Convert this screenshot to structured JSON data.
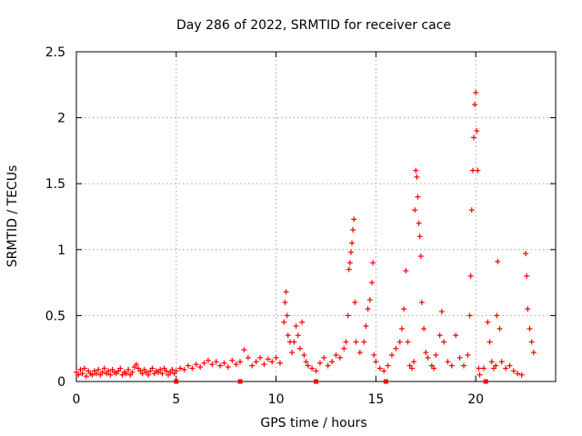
{
  "chart_data": {
    "type": "scatter",
    "title": "Day 286 of 2022, SRMTID for receiver cace",
    "xlabel": "GPS time / hours",
    "ylabel": "SRMTID / TECUs",
    "xlim": [
      0,
      24
    ],
    "ylim": [
      0,
      2.5
    ],
    "x_ticks": [
      0,
      5,
      10,
      15,
      20
    ],
    "x_tick_labels": [
      "0",
      "5",
      "10",
      "15",
      "20"
    ],
    "y_ticks": [
      0,
      0.5,
      1,
      1.5,
      2,
      2.5
    ],
    "y_tick_labels": [
      "0",
      "0.5",
      "1",
      "1.5",
      "2",
      "2.5"
    ],
    "grid": true,
    "marker": "plus",
    "marker_color": "#ff0000",
    "series": [
      {
        "name": "SRMTID",
        "points": [
          [
            0.0,
            0.07
          ],
          [
            0.1,
            0.05
          ],
          [
            0.2,
            0.09
          ],
          [
            0.3,
            0.06
          ],
          [
            0.4,
            0.1
          ],
          [
            0.5,
            0.04
          ],
          [
            0.6,
            0.08
          ],
          [
            0.7,
            0.06
          ],
          [
            0.8,
            0.05
          ],
          [
            0.9,
            0.08
          ],
          [
            1.0,
            0.06
          ],
          [
            1.1,
            0.09
          ],
          [
            1.2,
            0.05
          ],
          [
            1.3,
            0.07
          ],
          [
            1.4,
            0.1
          ],
          [
            1.5,
            0.06
          ],
          [
            1.6,
            0.08
          ],
          [
            1.7,
            0.05
          ],
          [
            1.8,
            0.09
          ],
          [
            1.9,
            0.07
          ],
          [
            2.0,
            0.06
          ],
          [
            2.1,
            0.08
          ],
          [
            2.2,
            0.1
          ],
          [
            2.3,
            0.05
          ],
          [
            2.4,
            0.07
          ],
          [
            2.5,
            0.06
          ],
          [
            2.6,
            0.09
          ],
          [
            2.7,
            0.05
          ],
          [
            2.8,
            0.07
          ],
          [
            2.9,
            0.11
          ],
          [
            3.0,
            0.13
          ],
          [
            3.1,
            0.1
          ],
          [
            3.2,
            0.08
          ],
          [
            3.3,
            0.06
          ],
          [
            3.4,
            0.09
          ],
          [
            3.5,
            0.07
          ],
          [
            3.6,
            0.05
          ],
          [
            3.7,
            0.08
          ],
          [
            3.8,
            0.1
          ],
          [
            3.9,
            0.06
          ],
          [
            4.0,
            0.08
          ],
          [
            4.1,
            0.07
          ],
          [
            4.2,
            0.09
          ],
          [
            4.3,
            0.06
          ],
          [
            4.4,
            0.1
          ],
          [
            4.5,
            0.08
          ],
          [
            4.6,
            0.05
          ],
          [
            4.7,
            0.07
          ],
          [
            4.8,
            0.09
          ],
          [
            4.9,
            0.06
          ],
          [
            5.0,
            0.08
          ],
          [
            5.2,
            0.1
          ],
          [
            5.4,
            0.09
          ],
          [
            5.6,
            0.12
          ],
          [
            5.8,
            0.1
          ],
          [
            6.0,
            0.13
          ],
          [
            6.2,
            0.11
          ],
          [
            6.4,
            0.14
          ],
          [
            6.6,
            0.16
          ],
          [
            6.8,
            0.13
          ],
          [
            7.0,
            0.15
          ],
          [
            7.2,
            0.12
          ],
          [
            7.4,
            0.14
          ],
          [
            7.6,
            0.11
          ],
          [
            7.8,
            0.16
          ],
          [
            8.0,
            0.13
          ],
          [
            8.2,
            0.15
          ],
          [
            8.4,
            0.24
          ],
          [
            8.6,
            0.18
          ],
          [
            8.8,
            0.12
          ],
          [
            9.0,
            0.15
          ],
          [
            9.2,
            0.18
          ],
          [
            9.4,
            0.13
          ],
          [
            9.6,
            0.17
          ],
          [
            9.8,
            0.15
          ],
          [
            10.0,
            0.18
          ],
          [
            10.2,
            0.14
          ],
          [
            10.4,
            0.45
          ],
          [
            10.45,
            0.6
          ],
          [
            10.5,
            0.68
          ],
          [
            10.55,
            0.5
          ],
          [
            10.6,
            0.35
          ],
          [
            10.7,
            0.3
          ],
          [
            10.8,
            0.22
          ],
          [
            10.9,
            0.3
          ],
          [
            11.0,
            0.42
          ],
          [
            11.1,
            0.35
          ],
          [
            11.2,
            0.25
          ],
          [
            11.3,
            0.45
          ],
          [
            11.4,
            0.2
          ],
          [
            11.5,
            0.15
          ],
          [
            11.6,
            0.12
          ],
          [
            11.8,
            0.1
          ],
          [
            12.0,
            0.08
          ],
          [
            12.2,
            0.14
          ],
          [
            12.4,
            0.18
          ],
          [
            12.6,
            0.12
          ],
          [
            12.8,
            0.15
          ],
          [
            13.0,
            0.2
          ],
          [
            13.2,
            0.18
          ],
          [
            13.4,
            0.25
          ],
          [
            13.5,
            0.3
          ],
          [
            13.6,
            0.5
          ],
          [
            13.65,
            0.85
          ],
          [
            13.7,
            0.9
          ],
          [
            13.75,
            0.98
          ],
          [
            13.8,
            1.05
          ],
          [
            13.85,
            1.15
          ],
          [
            13.9,
            1.23
          ],
          [
            13.95,
            0.6
          ],
          [
            14.0,
            0.3
          ],
          [
            14.2,
            0.22
          ],
          [
            14.4,
            0.3
          ],
          [
            14.5,
            0.42
          ],
          [
            14.6,
            0.55
          ],
          [
            14.7,
            0.62
          ],
          [
            14.8,
            0.75
          ],
          [
            14.85,
            0.9
          ],
          [
            14.9,
            0.2
          ],
          [
            15.0,
            0.15
          ],
          [
            15.2,
            0.1
          ],
          [
            15.4,
            0.08
          ],
          [
            15.6,
            0.12
          ],
          [
            15.8,
            0.2
          ],
          [
            16.0,
            0.25
          ],
          [
            16.2,
            0.3
          ],
          [
            16.3,
            0.4
          ],
          [
            16.4,
            0.55
          ],
          [
            16.5,
            0.84
          ],
          [
            16.6,
            0.3
          ],
          [
            16.7,
            0.12
          ],
          [
            16.8,
            0.1
          ],
          [
            16.9,
            0.15
          ],
          [
            16.95,
            1.3
          ],
          [
            17.0,
            1.6
          ],
          [
            17.05,
            1.55
          ],
          [
            17.1,
            1.4
          ],
          [
            17.15,
            1.2
          ],
          [
            17.2,
            1.1
          ],
          [
            17.25,
            0.95
          ],
          [
            17.3,
            0.6
          ],
          [
            17.4,
            0.4
          ],
          [
            17.5,
            0.22
          ],
          [
            17.6,
            0.18
          ],
          [
            17.8,
            0.12
          ],
          [
            17.9,
            0.1
          ],
          [
            18.0,
            0.2
          ],
          [
            18.2,
            0.35
          ],
          [
            18.3,
            0.53
          ],
          [
            18.4,
            0.3
          ],
          [
            18.6,
            0.15
          ],
          [
            18.8,
            0.12
          ],
          [
            19.0,
            0.35
          ],
          [
            19.2,
            0.18
          ],
          [
            19.4,
            0.12
          ],
          [
            19.6,
            0.2
          ],
          [
            19.7,
            0.5
          ],
          [
            19.75,
            0.8
          ],
          [
            19.8,
            1.3
          ],
          [
            19.85,
            1.6
          ],
          [
            19.9,
            1.85
          ],
          [
            19.95,
            2.1
          ],
          [
            20.0,
            2.19
          ],
          [
            20.05,
            1.9
          ],
          [
            20.1,
            1.6
          ],
          [
            20.15,
            0.1
          ],
          [
            20.2,
            0.05
          ],
          [
            20.4,
            0.1
          ],
          [
            20.6,
            0.45
          ],
          [
            20.7,
            0.3
          ],
          [
            20.8,
            0.15
          ],
          [
            20.9,
            0.1
          ],
          [
            21.0,
            0.12
          ],
          [
            21.05,
            0.5
          ],
          [
            21.1,
            0.91
          ],
          [
            21.2,
            0.4
          ],
          [
            21.3,
            0.15
          ],
          [
            21.5,
            0.1
          ],
          [
            21.7,
            0.12
          ],
          [
            21.9,
            0.08
          ],
          [
            22.1,
            0.06
          ],
          [
            22.3,
            0.05
          ],
          [
            22.5,
            0.97
          ],
          [
            22.55,
            0.8
          ],
          [
            22.6,
            0.55
          ],
          [
            22.7,
            0.4
          ],
          [
            22.8,
            0.3
          ],
          [
            22.9,
            0.22
          ]
        ]
      }
    ],
    "axis_markers": [
      5.0,
      8.2,
      12.0,
      15.5,
      20.5
    ]
  }
}
